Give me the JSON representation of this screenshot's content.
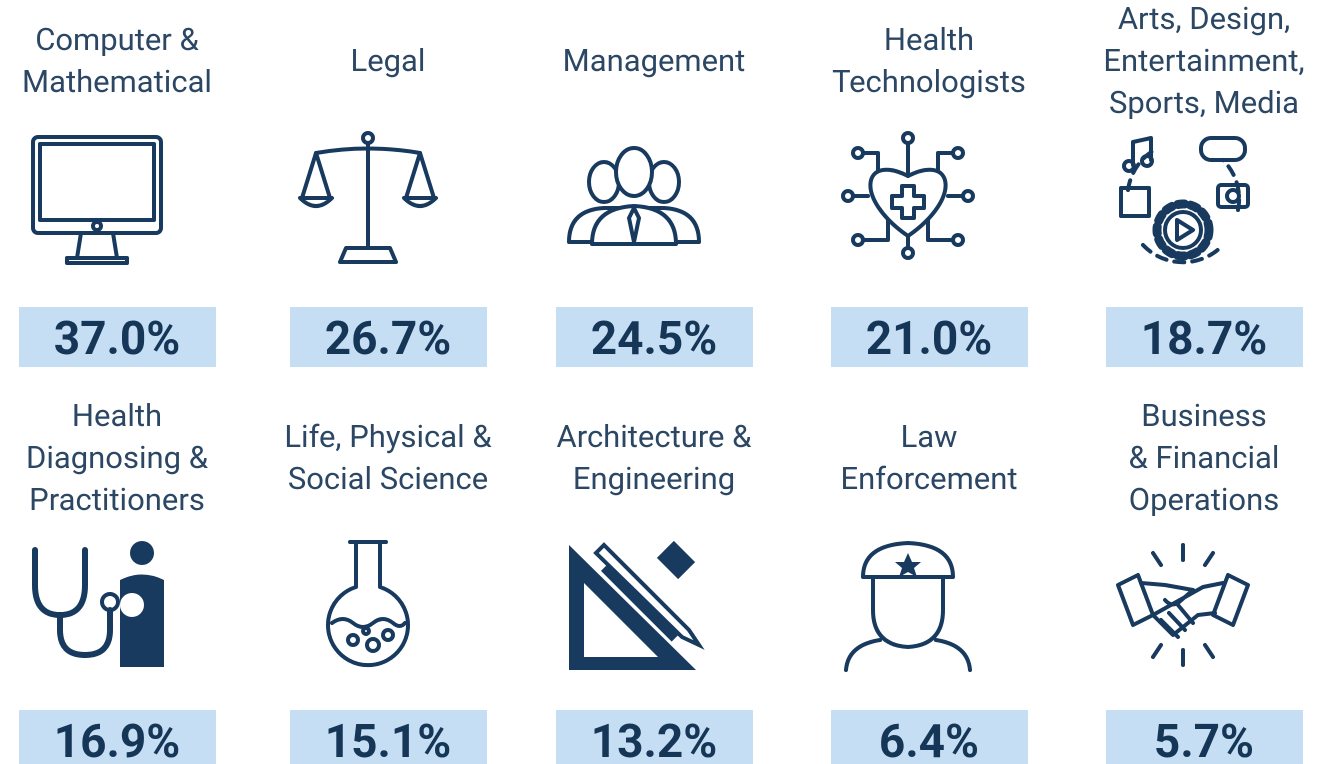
{
  "items": [
    {
      "label": [
        "Computer &",
        "Mathematical"
      ],
      "value": "37.0%"
    },
    {
      "label": [
        "Legal"
      ],
      "value": "26.7%"
    },
    {
      "label": [
        "Management"
      ],
      "value": "24.5%"
    },
    {
      "label": [
        "Health",
        "Technologists"
      ],
      "value": "21.0%"
    },
    {
      "label": [
        "Arts, Design,",
        "Entertainment,",
        "Sports, Media"
      ],
      "value": "18.7%"
    },
    {
      "label": [
        "Health",
        "Diagnosing &",
        "Practitioners"
      ],
      "value": "16.9%"
    },
    {
      "label": [
        "Life, Physical &",
        "Social Science"
      ],
      "value": "15.1%"
    },
    {
      "label": [
        "Architecture &",
        "Engineering"
      ],
      "value": "13.2%"
    },
    {
      "label": [
        "Law",
        "Enforcement"
      ],
      "value": "6.4%"
    },
    {
      "label": [
        "Business",
        "& Financial",
        "Operations"
      ],
      "value": "5.7%"
    }
  ]
}
